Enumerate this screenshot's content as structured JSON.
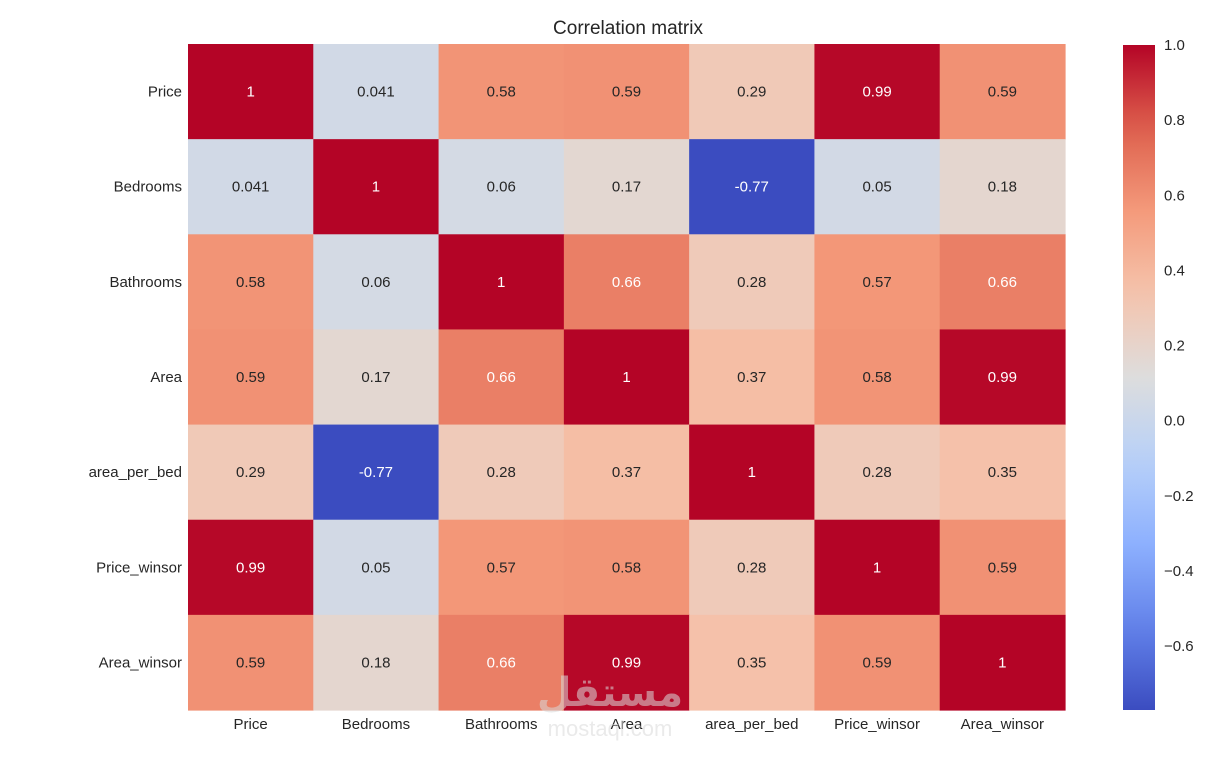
{
  "chart_data": {
    "type": "heatmap",
    "title": "Correlation matrix",
    "rows": [
      "Price",
      "Bedrooms",
      "Bathrooms",
      "Area",
      "area_per_bed",
      "Price_winsor",
      "Area_winsor"
    ],
    "columns": [
      "Price",
      "Bedrooms",
      "Bathrooms",
      "Area",
      "area_per_bed",
      "Price_winsor",
      "Area_winsor"
    ],
    "values": [
      [
        1,
        0.041,
        0.58,
        0.59,
        0.29,
        0.99,
        0.59
      ],
      [
        0.041,
        1,
        0.06,
        0.17,
        -0.77,
        0.05,
        0.18
      ],
      [
        0.58,
        0.06,
        1,
        0.66,
        0.28,
        0.57,
        0.66
      ],
      [
        0.59,
        0.17,
        0.66,
        1,
        0.37,
        0.58,
        0.99
      ],
      [
        0.29,
        -0.77,
        0.28,
        0.37,
        1,
        0.28,
        0.35
      ],
      [
        0.99,
        0.05,
        0.57,
        0.58,
        0.28,
        1,
        0.59
      ],
      [
        0.59,
        0.18,
        0.66,
        0.99,
        0.35,
        0.59,
        1
      ]
    ],
    "labels": [
      [
        "1",
        "0.041",
        "0.58",
        "0.59",
        "0.29",
        "0.99",
        "0.59"
      ],
      [
        "0.041",
        "1",
        "0.06",
        "0.17",
        "-0.77",
        "0.05",
        "0.18"
      ],
      [
        "0.58",
        "0.06",
        "1",
        "0.66",
        "0.28",
        "0.57",
        "0.66"
      ],
      [
        "0.59",
        "0.17",
        "0.66",
        "1",
        "0.37",
        "0.58",
        "0.99"
      ],
      [
        "0.29",
        "-0.77",
        "0.28",
        "0.37",
        "1",
        "0.28",
        "0.35"
      ],
      [
        "0.99",
        "0.05",
        "0.57",
        "0.58",
        "0.28",
        "1",
        "0.59"
      ],
      [
        "0.59",
        "0.18",
        "0.66",
        "0.99",
        "0.35",
        "0.59",
        "1"
      ]
    ],
    "colormap": "coolwarm",
    "vmin": -0.77,
    "vmax": 1.0,
    "colorbar": {
      "ticks": [
        1.0,
        0.8,
        0.6,
        0.4,
        0.2,
        0.0,
        -0.2,
        -0.4,
        -0.6
      ],
      "tick_labels": [
        "1.0",
        "0.8",
        "0.6",
        "0.4",
        "0.2",
        "0.0",
        "−0.2",
        "−0.4",
        "−0.6"
      ]
    }
  },
  "watermark": {
    "text": "mostaql.com",
    "logo_text": "مستقل"
  }
}
